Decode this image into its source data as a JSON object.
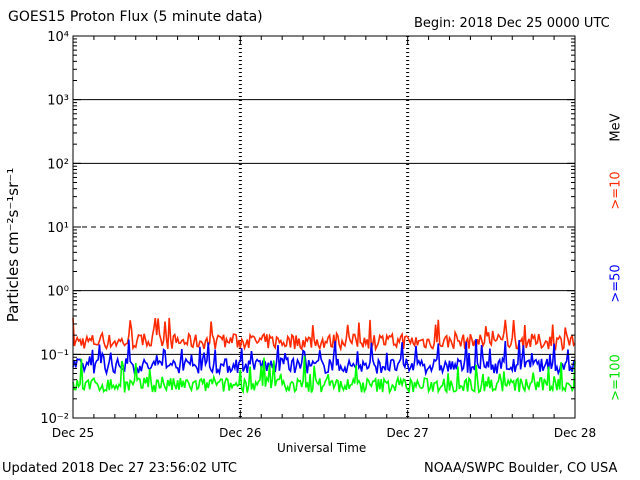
{
  "header": {
    "title": "GOES15 Proton Flux (5 minute data)",
    "begin": "Begin: 2018 Dec 25 0000 UTC"
  },
  "footer": {
    "updated": "Updated 2018 Dec 27 23:56:02 UTC",
    "credit": "NOAA/SWPC Boulder, CO USA"
  },
  "chart_data": {
    "type": "line",
    "title": "GOES15 Proton Flux (5 minute data)",
    "xlabel": "Universal Time",
    "ylabel": "Particles cm⁻²s⁻¹sr⁻¹",
    "x_ticks": [
      "Dec 25",
      "Dec 26",
      "Dec 27",
      "Dec 28"
    ],
    "y_ticks": [
      "10⁻²",
      "10⁻¹",
      "10⁰",
      "10¹",
      "10²",
      "10³",
      "10⁴"
    ],
    "yscale": "log",
    "ylim": [
      0.01,
      10000
    ],
    "xlim": [
      "2018-12-25 00:00",
      "2018-12-28 00:00"
    ],
    "grid": true,
    "legend_position": "right",
    "legend_unit": "MeV",
    "series": [
      {
        "name": ">=10",
        "color": "#ff2a00",
        "typical": 0.17,
        "low": 0.12,
        "high": 0.4
      },
      {
        "name": ">=50",
        "color": "#0000ff",
        "typical": 0.07,
        "low": 0.05,
        "high": 0.18
      },
      {
        "name": ">=100",
        "color": "#00ff00",
        "typical": 0.035,
        "low": 0.025,
        "high": 0.1
      }
    ]
  }
}
